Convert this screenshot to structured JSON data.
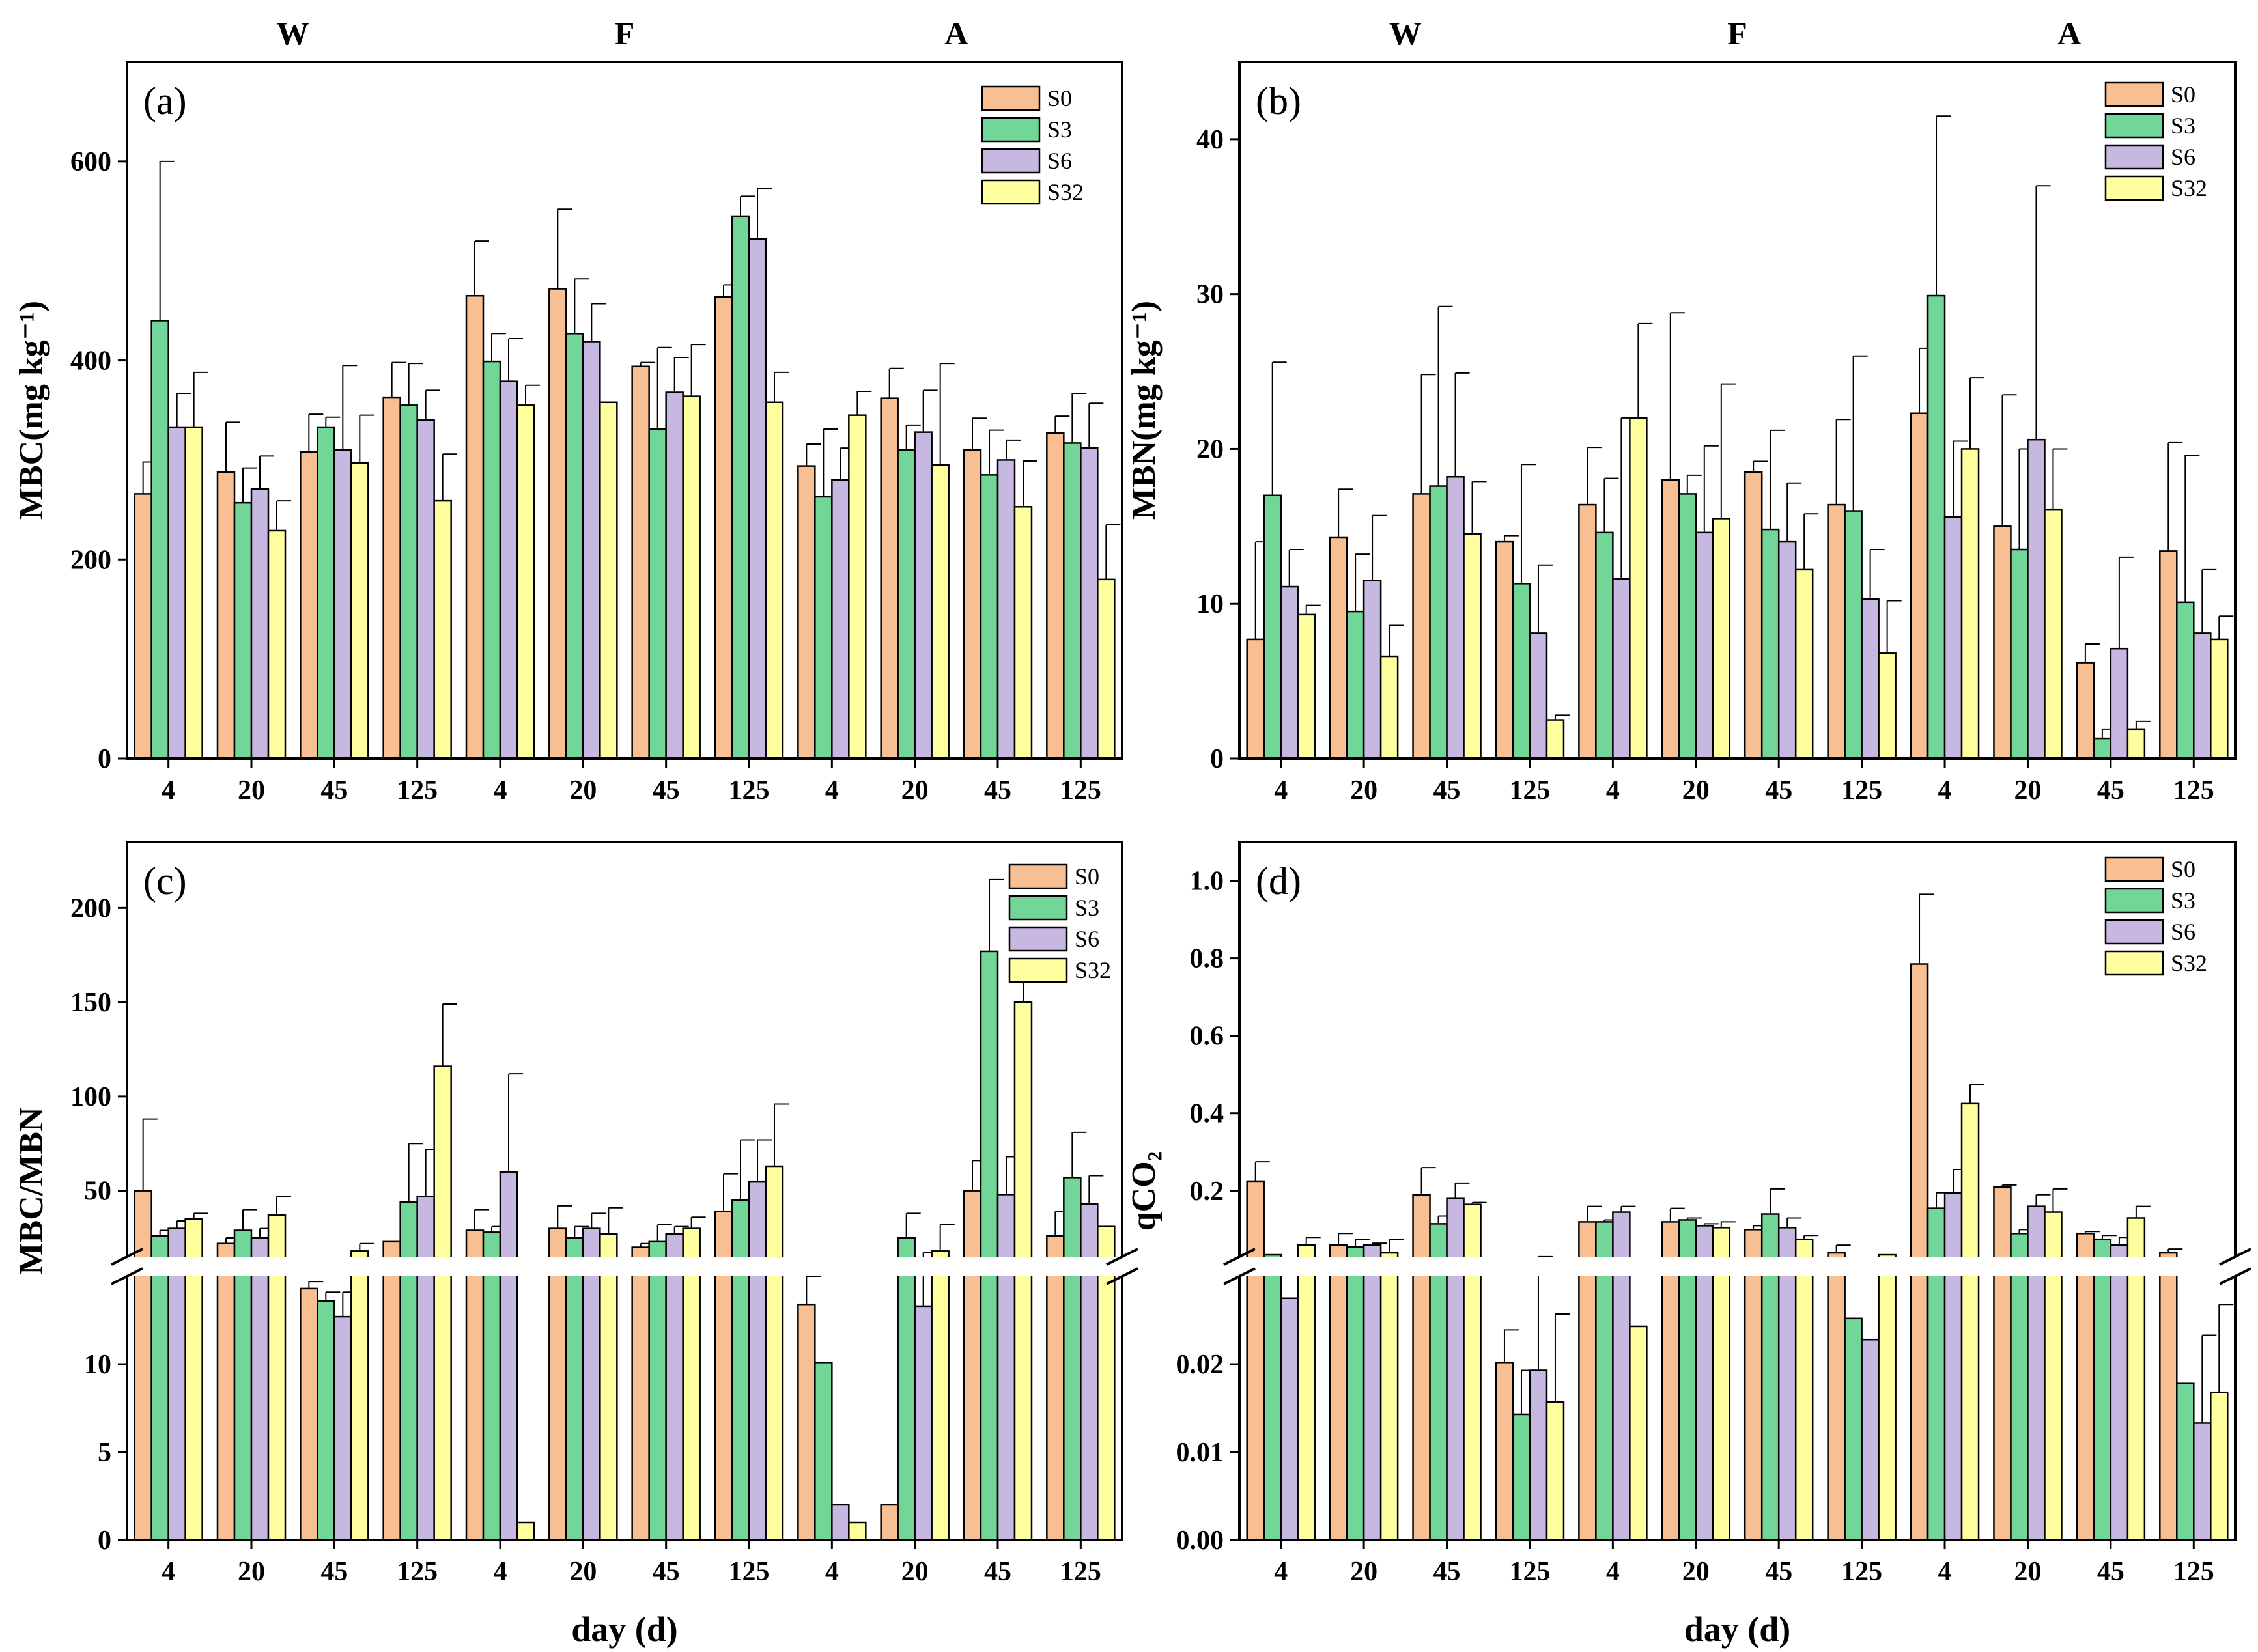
{
  "legend": [
    "S0",
    "S3",
    "S6",
    "S32"
  ],
  "colors": {
    "S0": "#F7BF92",
    "S3": "#72D698",
    "S6": "#C7B8E2",
    "S32": "#FFFFA0"
  },
  "seasons": [
    "W",
    "F",
    "A"
  ],
  "days": [
    "4",
    "20",
    "45",
    "125"
  ],
  "xlabel": "day (d)",
  "chart_data": [
    {
      "type": "bar",
      "panel": "(a)",
      "ylabel": "MBC(mg kg⁻¹)",
      "ylim": [
        0,
        700
      ],
      "yticks": [
        0,
        200,
        400,
        600
      ],
      "categories": [
        "W-4",
        "W-20",
        "W-45",
        "W-125",
        "F-4",
        "F-20",
        "F-45",
        "F-125",
        "A-4",
        "A-20",
        "A-45",
        "A-125"
      ],
      "series": [
        {
          "name": "S0",
          "values": [
            266,
            288,
            308,
            363,
            465,
            472,
            394,
            464,
            294,
            362,
            310,
            327
          ],
          "errors": [
            32,
            50,
            38,
            35,
            55,
            80,
            4,
            12,
            22,
            30,
            32,
            17
          ]
        },
        {
          "name": "S3",
          "values": [
            440,
            257,
            333,
            355,
            399,
            427,
            331,
            545,
            263,
            310,
            285,
            317
          ],
          "errors": [
            160,
            35,
            10,
            42,
            28,
            55,
            82,
            20,
            68,
            25,
            45,
            50
          ]
        },
        {
          "name": "S6",
          "values": [
            333,
            271,
            310,
            340,
            379,
            419,
            368,
            522,
            280,
            328,
            300,
            312
          ],
          "errors": [
            34,
            33,
            85,
            30,
            43,
            38,
            35,
            51,
            32,
            42,
            20,
            45
          ]
        },
        {
          "name": "S32",
          "values": [
            333,
            229,
            297,
            259,
            355,
            358,
            364,
            358,
            345,
            295,
            253,
            180
          ],
          "errors": [
            55,
            30,
            48,
            47,
            20,
            0,
            52,
            30,
            24,
            102,
            46,
            55
          ]
        }
      ]
    },
    {
      "type": "bar",
      "panel": "(b)",
      "ylabel": "MBN(mg kg⁻¹)",
      "ylim": [
        0,
        45
      ],
      "yticks": [
        0,
        10,
        20,
        30,
        40
      ],
      "categories": [
        "W-4",
        "W-20",
        "W-45",
        "W-125",
        "F-4",
        "F-20",
        "F-45",
        "F-125",
        "A-4",
        "A-20",
        "A-45",
        "A-125"
      ],
      "series": [
        {
          "name": "S0",
          "values": [
            7.7,
            14.3,
            17.1,
            14.0,
            16.4,
            18.0,
            18.5,
            16.4,
            22.3,
            15.0,
            6.2,
            13.4
          ],
          "errors": [
            6.3,
            3.1,
            7.7,
            0.4,
            3.7,
            10.8,
            0.7,
            5.5,
            4.2,
            8.5,
            1.2,
            7.0
          ]
        },
        {
          "name": "S3",
          "values": [
            17.0,
            9.5,
            17.6,
            11.3,
            14.6,
            17.1,
            14.8,
            16.0,
            29.9,
            13.5,
            1.3,
            10.1
          ],
          "errors": [
            8.6,
            3.7,
            11.6,
            7.7,
            3.5,
            1.2,
            6.4,
            10.0,
            11.6,
            6.5,
            0.6,
            9.5
          ]
        },
        {
          "name": "S6",
          "values": [
            11.1,
            11.5,
            18.2,
            8.1,
            11.6,
            14.6,
            14.0,
            10.3,
            15.6,
            20.6,
            7.1,
            8.1
          ],
          "errors": [
            2.4,
            4.2,
            6.7,
            4.4,
            10.4,
            5.6,
            3.8,
            3.2,
            4.9,
            16.4,
            5.9,
            4.1
          ]
        },
        {
          "name": "S32",
          "values": [
            9.3,
            6.6,
            14.5,
            2.5,
            22.0,
            15.5,
            12.2,
            6.8,
            20.0,
            16.1,
            1.9,
            7.7
          ],
          "errors": [
            0.6,
            2.0,
            3.4,
            0.3,
            6.1,
            8.7,
            3.6,
            3.4,
            4.6,
            3.9,
            0.5,
            1.5
          ]
        }
      ]
    },
    {
      "type": "bar",
      "panel": "(c)",
      "ylabel": "MBC/MBN",
      "broken_axis": true,
      "ylim_low": [
        0,
        15
      ],
      "yticks_low": [
        0,
        5,
        10
      ],
      "ylim_high": [
        15,
        235
      ],
      "yticks_high": [
        50,
        100,
        150,
        200
      ],
      "categories": [
        "W-4",
        "W-20",
        "W-45",
        "W-125",
        "F-4",
        "F-20",
        "F-45",
        "F-125",
        "A-4",
        "A-20",
        "A-45",
        "A-125"
      ],
      "series": [
        {
          "name": "S0",
          "values": [
            50,
            22,
            14.3,
            23,
            29,
            30,
            20,
            39,
            13.4,
            2,
            50,
            26
          ],
          "errors": [
            38,
            3,
            0.4,
            0,
            11,
            12,
            2,
            20,
            1.6,
            0,
            16,
            13
          ]
        },
        {
          "name": "S3",
          "values": [
            26,
            29,
            13.6,
            44,
            28,
            25,
            23,
            45,
            10.1,
            25,
            177,
            57
          ],
          "errors": [
            3,
            11,
            0.5,
            31,
            3,
            6,
            9,
            32,
            0,
            13,
            38,
            24
          ]
        },
        {
          "name": "S6",
          "values": [
            30,
            25,
            12.7,
            47,
            60,
            30,
            27,
            55,
            2,
            13.3,
            48,
            43
          ],
          "errors": [
            4,
            5,
            1.4,
            25,
            52,
            8,
            4,
            22,
            0,
            4,
            20,
            15
          ]
        },
        {
          "name": "S32",
          "values": [
            35,
            37,
            18,
            116,
            1,
            27,
            30,
            63,
            1,
            18,
            150,
            31
          ],
          "errors": [
            3,
            10,
            4,
            33,
            0,
            14,
            6,
            33,
            0,
            14,
            16,
            0
          ]
        }
      ]
    },
    {
      "type": "bar",
      "panel": "(d)",
      "ylabel": "qCO₂",
      "broken_axis": true,
      "ylim_low": [
        0,
        0.03
      ],
      "yticks_low": [
        0.0,
        0.01,
        0.02
      ],
      "ylim_high": [
        0.03,
        1.1
      ],
      "yticks_high": [
        0.2,
        0.4,
        0.6,
        0.8,
        1.0
      ],
      "categories": [
        "W-4",
        "W-20",
        "W-45",
        "W-125",
        "F-4",
        "F-20",
        "F-45",
        "F-125",
        "A-4",
        "A-20",
        "A-45",
        "A-125"
      ],
      "series": [
        {
          "name": "S0",
          "values": [
            0.225,
            0.06,
            0.19,
            0.0202,
            0.12,
            0.12,
            0.1,
            0.04,
            0.785,
            0.21,
            0.09,
            0.04
          ],
          "errors": [
            0.05,
            0.03,
            0.07,
            0.0037,
            0.04,
            0.035,
            0.01,
            0.02,
            0.18,
            0.005,
            0.005,
            0.01
          ]
        },
        {
          "name": "S3",
          "values": [
            0.035,
            0.055,
            0.115,
            0.0143,
            0.12,
            0.125,
            0.14,
            0.0252,
            0.155,
            0.09,
            0.075,
            0.0178
          ],
          "errors": [
            0,
            0.02,
            0.02,
            0.005,
            0.005,
            0.005,
            0.065,
            0,
            0.04,
            0.01,
            0.01,
            0
          ]
        },
        {
          "name": "S6",
          "values": [
            0.0275,
            0.06,
            0.18,
            0.0193,
            0.145,
            0.11,
            0.105,
            0.0228,
            0.195,
            0.16,
            0.06,
            0.0133
          ],
          "errors": [
            0,
            0.005,
            0.04,
            0.011,
            0.015,
            0.005,
            0.025,
            0,
            0.06,
            0.03,
            0.02,
            0.01
          ]
        },
        {
          "name": "S32",
          "values": [
            0.06,
            0.04,
            0.165,
            0.0157,
            0.0243,
            0.105,
            0.075,
            0.035,
            0.425,
            0.145,
            0.13,
            0.0168
          ],
          "errors": [
            0.02,
            0.035,
            0.005,
            0.01,
            0,
            0.015,
            0.01,
            0,
            0.05,
            0.06,
            0.03,
            0.01
          ]
        }
      ]
    }
  ]
}
